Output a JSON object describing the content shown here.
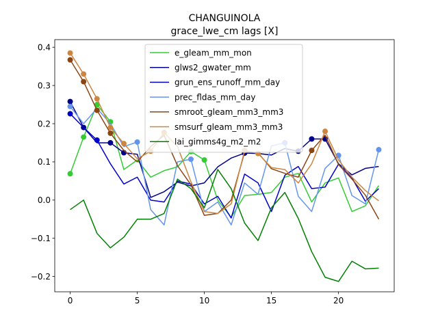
{
  "chart_data": {
    "type": "line",
    "title": "CHANGUINOLA",
    "subtitle": "grace_lwe_cm lags [X]",
    "xlabel": "",
    "ylabel": "",
    "xlim": [
      -1.15,
      24.15
    ],
    "ylim": [
      -0.24,
      0.42
    ],
    "xticks": [
      0,
      5,
      10,
      15,
      20
    ],
    "yticks": [
      -0.2,
      -0.1,
      0.0,
      0.1,
      0.2,
      0.3,
      0.4
    ],
    "ytick_labels": [
      "−0.2",
      "−0.1",
      "0.0",
      "0.1",
      "0.2",
      "0.3",
      "0.4"
    ],
    "grid": false,
    "legend_position": "top-center",
    "x": [
      0,
      1,
      2,
      3,
      4,
      5,
      6,
      7,
      8,
      9,
      10,
      11,
      12,
      13,
      14,
      15,
      16,
      17,
      18,
      19,
      20,
      21,
      22,
      23
    ],
    "series": [
      {
        "name": "e_gleam_mm_mon",
        "color": "#32cd32",
        "values": [
          0.069,
          0.165,
          0.25,
          0.205,
          0.08,
          0.105,
          0.06,
          0.077,
          0.087,
          0.127,
          0.105,
          0.0,
          -0.045,
          0.012,
          0.015,
          0.02,
          0.06,
          0.07,
          -0.005,
          0.045,
          0.058,
          -0.03,
          -0.015,
          0.038
        ],
        "markers": [
          0,
          1,
          2,
          3,
          9,
          10
        ]
      },
      {
        "name": "glws2_gwater_mm",
        "color": "#00008b",
        "values": [
          0.258,
          0.19,
          0.15,
          0.15,
          0.124,
          0.12,
          0.007,
          0.022,
          0.047,
          0.037,
          0.045,
          0.087,
          0.11,
          0.123,
          0.122,
          0.118,
          0.135,
          0.128,
          0.16,
          0.16,
          0.095,
          0.066,
          0.083,
          0.088
        ],
        "markers": [
          0,
          1,
          3,
          4,
          13,
          17,
          18,
          19
        ]
      },
      {
        "name": "grun_ens_runoff_mm_day",
        "color": "#0000cd",
        "values": [
          0.226,
          0.19,
          0.157,
          0.095,
          0.042,
          0.06,
          0.0,
          -0.005,
          0.05,
          0.042,
          -0.01,
          0.01,
          -0.047,
          0.068,
          0.045,
          -0.03,
          0.065,
          0.088,
          0.03,
          0.034,
          0.094,
          0.058,
          -0.003,
          0.03
        ],
        "markers": [
          0,
          2
        ]
      },
      {
        "name": "prec_fldas_mm_day",
        "color": "#6495ed",
        "values": [
          0.245,
          0.2,
          0.24,
          0.2,
          0.14,
          0.152,
          -0.025,
          -0.065,
          0.1,
          0.107,
          -0.03,
          -0.005,
          -0.065,
          0.045,
          0.015,
          0.142,
          0.15,
          0.01,
          -0.03,
          0.083,
          0.117,
          0.012,
          -0.01,
          0.132
        ],
        "markers": [
          0,
          5,
          9,
          16,
          20,
          23
        ]
      },
      {
        "name": "smroot_gleam_mm3_mm3",
        "color": "#8b4513",
        "values": [
          0.367,
          0.31,
          0.235,
          0.175,
          0.13,
          0.1,
          0.14,
          0.17,
          0.09,
          0.04,
          -0.04,
          -0.035,
          0.0,
          0.125,
          0.124,
          0.082,
          0.07,
          0.06,
          0.13,
          0.17,
          0.093,
          0.055,
          0.013,
          -0.05
        ],
        "markers": [
          0,
          1,
          2,
          3,
          18
        ]
      },
      {
        "name": "smsurf_gleam_mm3_mm3",
        "color": "#cd853f",
        "values": [
          0.385,
          0.33,
          0.265,
          0.19,
          0.148,
          0.108,
          0.128,
          0.177,
          0.14,
          0.048,
          -0.03,
          -0.035,
          -0.01,
          0.13,
          0.122,
          0.085,
          0.08,
          0.045,
          0.095,
          0.18,
          0.105,
          0.06,
          0.025,
          -0.002
        ],
        "markers": [
          0,
          1,
          2,
          3,
          4,
          6,
          7,
          13,
          14,
          19
        ]
      },
      {
        "name": "lai_gimms4g_m2_m2",
        "color": "#008000",
        "values": [
          -0.025,
          0.0,
          -0.087,
          -0.125,
          -0.097,
          -0.05,
          -0.05,
          -0.035,
          0.055,
          0.03,
          -0.02,
          0.08,
          0.03,
          -0.06,
          -0.106,
          -0.02,
          0.02,
          -0.048,
          -0.135,
          -0.202,
          -0.213,
          -0.16,
          -0.18,
          -0.178
        ],
        "markers": []
      }
    ]
  }
}
